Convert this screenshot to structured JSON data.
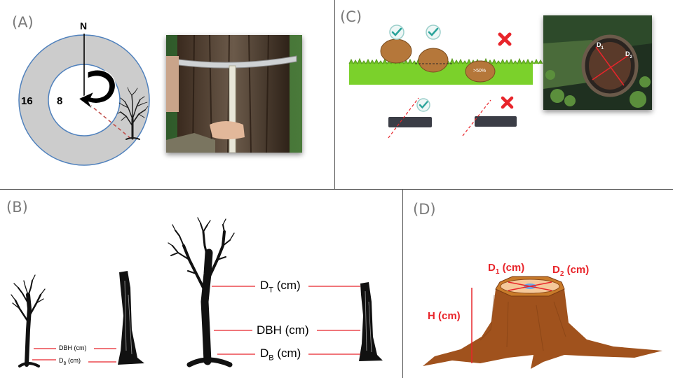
{
  "panels": {
    "a": {
      "label": "(A)",
      "compass_label": "N",
      "outer_radius_label": "16",
      "inner_radius_label": "8"
    },
    "b": {
      "label": "(B)",
      "small_dbh_label": "DBH (cm)",
      "small_db_label": "D",
      "small_db_sub": "B",
      "small_db_unit": " (cm)",
      "dt_label": "D",
      "dt_sub": "T",
      "dt_unit": " (cm)",
      "dbh_label": "DBH (cm)",
      "db_label": "D",
      "db_sub": "B",
      "db_unit": " (cm)"
    },
    "c": {
      "label": "(C)",
      "buried_label": ">50%",
      "d1_label": "D",
      "d1_sub": "1",
      "d2_label": "D",
      "d2_sub": "2"
    },
    "d": {
      "label": "(D)",
      "d1_label": "D",
      "d1_sub": "1",
      "d1_unit": " (cm)",
      "d2_label": "D",
      "d2_sub": "2",
      "d2_unit": " (cm)",
      "h_label": "H (cm)"
    }
  },
  "colors": {
    "ring_fill": "#cccccc",
    "ring_stroke": "#4f81bd",
    "measure_red": "#e8252b",
    "stump_brown": "#a0521d",
    "log_brown": "#b5773a",
    "grass_green": "#7bd12b",
    "check_teal": "#2aa39a"
  },
  "icons": [
    "check-icon",
    "cross-icon",
    "rotation-arrow-icon",
    "tree-icon"
  ]
}
